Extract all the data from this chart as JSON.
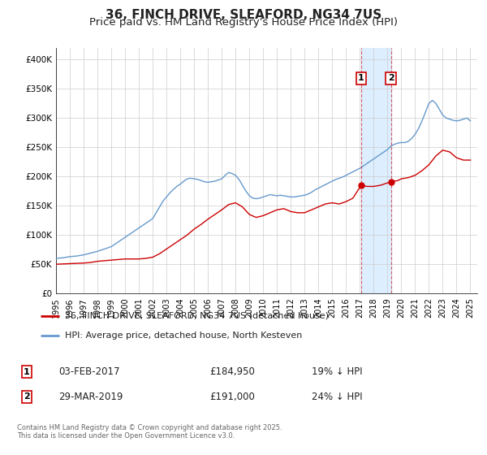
{
  "title": "36, FINCH DRIVE, SLEAFORD, NG34 7US",
  "subtitle": "Price paid vs. HM Land Registry's House Price Index (HPI)",
  "title_fontsize": 11,
  "subtitle_fontsize": 9.5,
  "background_color": "#ffffff",
  "plot_bg_color": "#ffffff",
  "grid_color": "#cccccc",
  "ylim": [
    0,
    420000
  ],
  "yticks": [
    0,
    50000,
    100000,
    150000,
    200000,
    250000,
    300000,
    350000,
    400000
  ],
  "ytick_labels": [
    "£0",
    "£50K",
    "£100K",
    "£150K",
    "£200K",
    "£250K",
    "£300K",
    "£350K",
    "£400K"
  ],
  "xlim_start": 1995.0,
  "xlim_end": 2025.5,
  "xticks": [
    1995,
    1996,
    1997,
    1998,
    1999,
    2000,
    2001,
    2002,
    2003,
    2004,
    2005,
    2006,
    2007,
    2008,
    2009,
    2010,
    2011,
    2012,
    2013,
    2014,
    2015,
    2016,
    2017,
    2018,
    2019,
    2020,
    2021,
    2022,
    2023,
    2024,
    2025
  ],
  "red_line_color": "#cc0000",
  "blue_line_color": "#6699cc",
  "shaded_region_color": "#ddeeff",
  "vline1_x": 2017.09,
  "vline2_x": 2019.25,
  "marker1_x": 2017.09,
  "marker1_y": 184950,
  "marker2_x": 2019.25,
  "marker2_y": 191000,
  "legend_label_red": "36, FINCH DRIVE, SLEAFORD, NG34 7US (detached house)",
  "legend_label_blue": "HPI: Average price, detached house, North Kesteven",
  "annotation1_label": "1",
  "annotation2_label": "2",
  "annotation1_date": "03-FEB-2017",
  "annotation1_price": "£184,950",
  "annotation1_hpi": "19% ↓ HPI",
  "annotation2_date": "29-MAR-2019",
  "annotation2_price": "£191,000",
  "annotation2_hpi": "24% ↓ HPI",
  "footer_text": "Contains HM Land Registry data © Crown copyright and database right 2025.\nThis data is licensed under the Open Government Licence v3.0.",
  "hpi_data_x": [
    1995.0,
    1995.25,
    1995.5,
    1995.75,
    1996.0,
    1996.25,
    1996.5,
    1996.75,
    1997.0,
    1997.25,
    1997.5,
    1997.75,
    1998.0,
    1998.25,
    1998.5,
    1998.75,
    1999.0,
    1999.25,
    1999.5,
    1999.75,
    2000.0,
    2000.25,
    2000.5,
    2000.75,
    2001.0,
    2001.25,
    2001.5,
    2001.75,
    2002.0,
    2002.25,
    2002.5,
    2002.75,
    2003.0,
    2003.25,
    2003.5,
    2003.75,
    2004.0,
    2004.25,
    2004.5,
    2004.75,
    2005.0,
    2005.25,
    2005.5,
    2005.75,
    2006.0,
    2006.25,
    2006.5,
    2006.75,
    2007.0,
    2007.25,
    2007.5,
    2007.75,
    2008.0,
    2008.25,
    2008.5,
    2008.75,
    2009.0,
    2009.25,
    2009.5,
    2009.75,
    2010.0,
    2010.25,
    2010.5,
    2010.75,
    2011.0,
    2011.25,
    2011.5,
    2011.75,
    2012.0,
    2012.25,
    2012.5,
    2012.75,
    2013.0,
    2013.25,
    2013.5,
    2013.75,
    2014.0,
    2014.25,
    2014.5,
    2014.75,
    2015.0,
    2015.25,
    2015.5,
    2015.75,
    2016.0,
    2016.25,
    2016.5,
    2016.75,
    2017.0,
    2017.25,
    2017.5,
    2017.75,
    2018.0,
    2018.25,
    2018.5,
    2018.75,
    2019.0,
    2019.25,
    2019.5,
    2019.75,
    2020.0,
    2020.25,
    2020.5,
    2020.75,
    2021.0,
    2021.25,
    2021.5,
    2021.75,
    2022.0,
    2022.25,
    2022.5,
    2022.75,
    2023.0,
    2023.25,
    2023.5,
    2023.75,
    2024.0,
    2024.25,
    2024.5,
    2024.75,
    2025.0
  ],
  "hpi_data_y": [
    60000,
    60500,
    61000,
    62000,
    63000,
    63500,
    64000,
    65000,
    66000,
    67500,
    69000,
    70500,
    72000,
    74000,
    76000,
    78000,
    80000,
    84000,
    88000,
    92000,
    96000,
    100000,
    104000,
    108000,
    112000,
    116000,
    120000,
    124000,
    128000,
    138000,
    148000,
    158000,
    165000,
    172000,
    178000,
    183000,
    187000,
    192000,
    196000,
    197000,
    196000,
    195000,
    193000,
    191000,
    190000,
    191000,
    192000,
    194000,
    196000,
    202000,
    207000,
    205000,
    202000,
    195000,
    185000,
    175000,
    167000,
    163000,
    162000,
    163000,
    165000,
    167000,
    169000,
    168000,
    167000,
    168000,
    167000,
    166000,
    165000,
    165000,
    166000,
    167000,
    168000,
    170000,
    173000,
    177000,
    180000,
    183000,
    186000,
    189000,
    192000,
    195000,
    197000,
    199000,
    202000,
    205000,
    208000,
    211000,
    214000,
    218000,
    222000,
    226000,
    230000,
    234000,
    238000,
    242000,
    246000,
    252000,
    255000,
    257000,
    258000,
    258000,
    260000,
    265000,
    272000,
    282000,
    295000,
    310000,
    325000,
    330000,
    325000,
    315000,
    305000,
    300000,
    298000,
    296000,
    295000,
    296000,
    298000,
    300000,
    295000
  ],
  "red_data_x": [
    1995.0,
    1995.5,
    1996.0,
    1996.5,
    1997.0,
    1997.5,
    1998.0,
    1999.0,
    2000.0,
    2001.0,
    2001.5,
    2002.0,
    2002.5,
    2003.0,
    2003.5,
    2004.0,
    2004.5,
    2005.0,
    2005.5,
    2006.0,
    2006.5,
    2007.0,
    2007.5,
    2008.0,
    2008.5,
    2009.0,
    2009.5,
    2010.0,
    2010.5,
    2011.0,
    2011.5,
    2012.0,
    2012.5,
    2013.0,
    2013.5,
    2014.0,
    2014.5,
    2015.0,
    2015.5,
    2016.0,
    2016.5,
    2017.09,
    2017.5,
    2018.0,
    2018.5,
    2019.25,
    2019.75,
    2020.0,
    2020.5,
    2021.0,
    2021.5,
    2022.0,
    2022.5,
    2023.0,
    2023.5,
    2024.0,
    2024.5,
    2025.0
  ],
  "red_data_y": [
    50000,
    50500,
    51000,
    51500,
    52000,
    53000,
    55000,
    57000,
    59000,
    59000,
    60000,
    62000,
    68000,
    76000,
    84000,
    92000,
    100000,
    110000,
    118000,
    127000,
    135000,
    143000,
    152000,
    155000,
    148000,
    135000,
    130000,
    133000,
    138000,
    143000,
    145000,
    140000,
    138000,
    138000,
    143000,
    148000,
    153000,
    155000,
    153000,
    157000,
    163000,
    184950,
    183000,
    183000,
    185000,
    191000,
    193000,
    196000,
    198000,
    202000,
    210000,
    220000,
    235000,
    245000,
    242000,
    232000,
    228000,
    228000
  ]
}
